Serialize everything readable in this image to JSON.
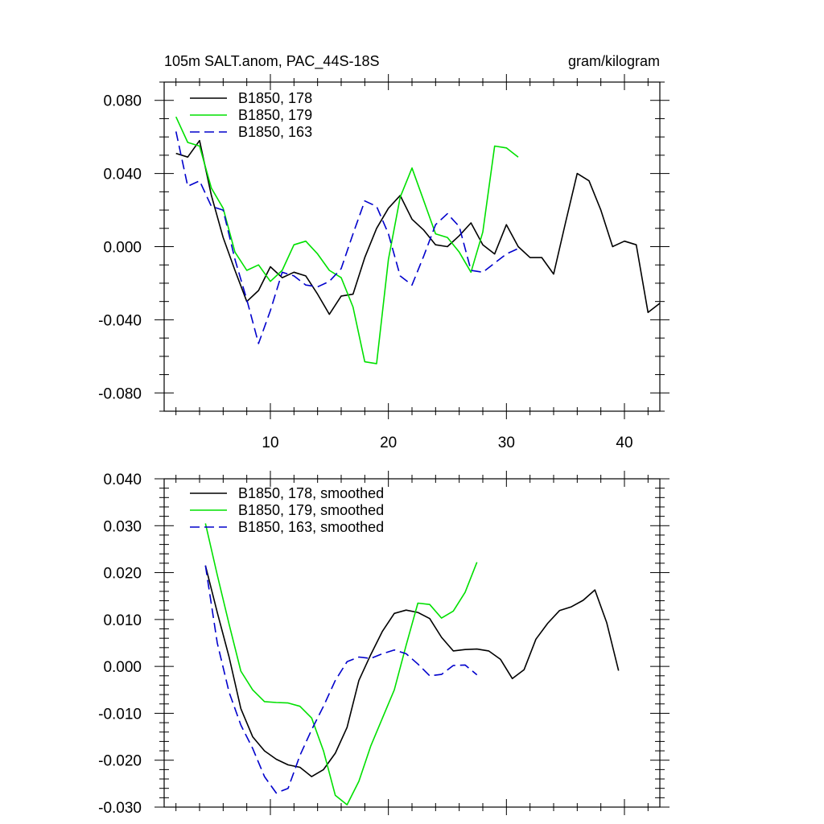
{
  "chart_data": [
    {
      "type": "line",
      "title_left": "105m SALT.anom, PAC_44S-18S",
      "title_right": "gram/kilogram",
      "xlabel": "",
      "ylabel": "",
      "xlim": [
        1,
        43
      ],
      "ylim": [
        -0.09,
        0.09
      ],
      "xticks": [
        10,
        20,
        30,
        40
      ],
      "xtick_labels": [
        "10",
        "20",
        "30",
        "40"
      ],
      "yticks": [
        -0.08,
        -0.04,
        0.0,
        0.04,
        0.08
      ],
      "ytick_labels": [
        "-0.080",
        "-0.040",
        "0.000",
        "0.040",
        "0.080"
      ],
      "grid": false,
      "legend_position": "top-left",
      "series": [
        {
          "name": "B1850, 178",
          "color": "#000000",
          "dash": "solid",
          "x": [
            2,
            3,
            4,
            5,
            6,
            7,
            8,
            9,
            10,
            11,
            12,
            13,
            14,
            15,
            16,
            17,
            18,
            19,
            20,
            21,
            22,
            23,
            24,
            25,
            26,
            27,
            28,
            29,
            30,
            31,
            32,
            33,
            34,
            35,
            36,
            37,
            38,
            39,
            40,
            41,
            42,
            43
          ],
          "values": [
            0.051,
            0.049,
            0.058,
            0.028,
            0.005,
            -0.013,
            -0.03,
            -0.024,
            -0.011,
            -0.017,
            -0.014,
            -0.016,
            -0.026,
            -0.037,
            -0.027,
            -0.026,
            -0.006,
            0.01,
            0.021,
            0.028,
            0.015,
            0.009,
            0.001,
            0.0,
            0.006,
            0.013,
            0.001,
            -0.004,
            0.012,
            0.0,
            -0.006,
            -0.006,
            -0.015,
            0.013,
            0.04,
            0.036,
            0.02,
            0.0,
            0.003,
            0.001,
            -0.036,
            -0.031
          ]
        },
        {
          "name": "B1850, 179",
          "color": "#00e000",
          "dash": "solid",
          "x": [
            2,
            3,
            4,
            5,
            6,
            7,
            8,
            9,
            10,
            11,
            12,
            13,
            14,
            15,
            16,
            17,
            18,
            19,
            20,
            21,
            22,
            23,
            24,
            25,
            26,
            27,
            28,
            29,
            30,
            31
          ],
          "values": [
            0.071,
            0.057,
            0.055,
            0.032,
            0.021,
            -0.003,
            -0.013,
            -0.01,
            -0.019,
            -0.013,
            0.001,
            0.003,
            -0.004,
            -0.013,
            -0.017,
            -0.033,
            -0.063,
            -0.064,
            -0.007,
            0.027,
            0.043,
            0.025,
            0.007,
            0.005,
            -0.003,
            -0.014,
            0.008,
            0.055,
            0.054,
            0.049
          ]
        },
        {
          "name": "B1850, 163",
          "color": "#0000cc",
          "dash": "dashed",
          "x": [
            2,
            3,
            4,
            5,
            6,
            7,
            8,
            9,
            10,
            11,
            12,
            13,
            14,
            15,
            16,
            17,
            18,
            19,
            20,
            21,
            22,
            23,
            24,
            25,
            26,
            27,
            28,
            29,
            30,
            31
          ],
          "values": [
            0.063,
            0.033,
            0.036,
            0.022,
            0.02,
            -0.007,
            -0.029,
            -0.053,
            -0.035,
            -0.014,
            -0.016,
            -0.021,
            -0.022,
            -0.019,
            -0.012,
            0.007,
            0.025,
            0.022,
            0.007,
            -0.016,
            -0.021,
            -0.005,
            0.012,
            0.018,
            0.011,
            -0.013,
            -0.014,
            -0.009,
            -0.004,
            -0.001
          ]
        }
      ]
    },
    {
      "type": "line",
      "xlim": [
        1,
        43
      ],
      "ylim": [
        -0.03,
        0.04
      ],
      "xticks": [
        10,
        20,
        30,
        40
      ],
      "xtick_labels": [
        "",
        "",
        "",
        ""
      ],
      "yticks": [
        -0.03,
        -0.02,
        -0.01,
        0.0,
        0.01,
        0.02,
        0.03,
        0.04
      ],
      "ytick_labels": [
        "-0.030",
        "-0.020",
        "-0.010",
        "0.000",
        "0.010",
        "0.020",
        "0.030",
        "0.040"
      ],
      "grid": false,
      "legend_position": "top-left",
      "series": [
        {
          "name": "B1850, 178, smoothed",
          "color": "#000000",
          "dash": "solid",
          "x": [
            4.5,
            5.5,
            6.5,
            7.5,
            8.5,
            9.5,
            10.5,
            11.5,
            12.5,
            13.5,
            14.5,
            15.5,
            16.5,
            17.5,
            18.5,
            19.5,
            20.5,
            21.5,
            22.5,
            23.5,
            24.5,
            25.5,
            26.5,
            27.5,
            28.5,
            29.5,
            30.5,
            31.5,
            32.5,
            33.5,
            34.5,
            35.5,
            36.5,
            37.5,
            38.5,
            39.5
          ],
          "values": [
            0.0215,
            0.0115,
            0.002,
            -0.009,
            -0.015,
            -0.018,
            -0.0198,
            -0.021,
            -0.0215,
            -0.0235,
            -0.022,
            -0.0185,
            -0.013,
            -0.003,
            0.0025,
            0.0075,
            0.0113,
            0.012,
            0.0115,
            0.0102,
            0.0062,
            0.0033,
            0.0036,
            0.0037,
            0.0033,
            0.0015,
            -0.0026,
            -0.0007,
            0.0058,
            0.0092,
            0.0119,
            0.0127,
            0.0141,
            0.0163,
            0.0093,
            -0.0009
          ]
        },
        {
          "name": "B1850, 179, smoothed",
          "color": "#00e000",
          "dash": "solid",
          "x": [
            4.5,
            5.5,
            6.5,
            7.5,
            8.5,
            9.5,
            10.5,
            11.5,
            12.5,
            13.5,
            14.5,
            15.5,
            16.5,
            17.5,
            18.5,
            19.5,
            20.5,
            21.5,
            22.5,
            23.5,
            24.5,
            25.5,
            26.5,
            27.5
          ],
          "values": [
            0.0305,
            0.0195,
            0.009,
            -0.001,
            -0.005,
            -0.0075,
            -0.0077,
            -0.0078,
            -0.0085,
            -0.011,
            -0.018,
            -0.0275,
            -0.0295,
            -0.0245,
            -0.017,
            -0.011,
            -0.005,
            0.0045,
            0.0135,
            0.0132,
            0.0103,
            0.0118,
            0.0158,
            0.0222
          ]
        },
        {
          "name": "B1850, 163, smoothed",
          "color": "#0000cc",
          "dash": "dashed",
          "x": [
            4.5,
            5.5,
            6.5,
            7.5,
            8.5,
            9.5,
            10.5,
            11.5,
            12.5,
            13.5,
            14.5,
            15.5,
            16.5,
            17.5,
            18.5,
            19.5,
            20.5,
            21.5,
            22.5,
            23.5,
            24.5,
            25.5,
            26.5,
            27.5
          ],
          "values": [
            0.0215,
            0.005,
            -0.0055,
            -0.0125,
            -0.0175,
            -0.0235,
            -0.027,
            -0.026,
            -0.019,
            -0.0135,
            -0.0085,
            -0.003,
            0.001,
            0.002,
            0.0017,
            0.0027,
            0.0035,
            0.0027,
            0.0005,
            -0.002,
            -0.0017,
            0.0002,
            0.0003,
            -0.0018
          ]
        }
      ]
    }
  ]
}
